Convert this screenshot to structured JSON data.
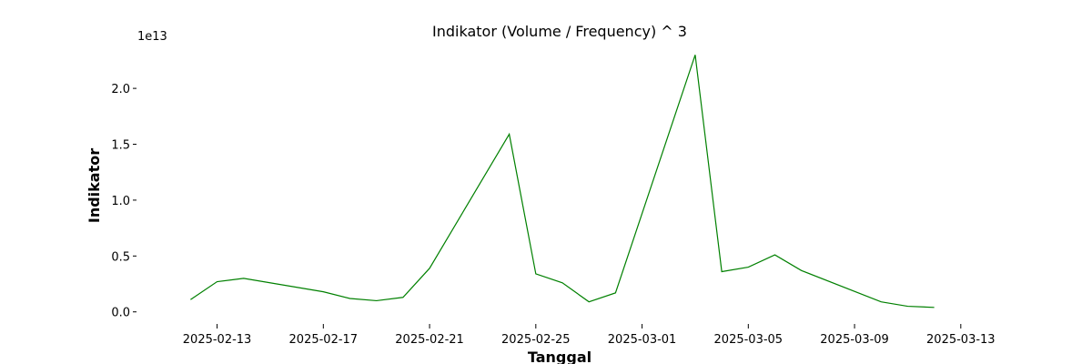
{
  "chart_data": {
    "type": "line",
    "title": "Indikator (Volume / Frequency) ^ 3",
    "xlabel": "Tanggal",
    "ylabel": "Indikator",
    "y_offset_label": "1e13",
    "y_multiplier": 10000000000000.0,
    "xlim": [
      "2025-02-10",
      "2025-03-14"
    ],
    "ylim": [
      -0.1,
      2.4
    ],
    "x_ticks": [
      "2025-02-13",
      "2025-02-17",
      "2025-02-21",
      "2025-02-25",
      "2025-03-01",
      "2025-03-05",
      "2025-03-09",
      "2025-03-13"
    ],
    "y_ticks": [
      0.0,
      0.5,
      1.0,
      1.5,
      2.0
    ],
    "y_tick_labels": [
      "0.0",
      "0.5",
      "1.0",
      "1.5",
      "2.0"
    ],
    "grid": false,
    "line_color": "#008000",
    "series": [
      {
        "x": [
          "2025-02-12",
          "2025-02-13",
          "2025-02-14",
          "2025-02-17",
          "2025-02-18",
          "2025-02-19",
          "2025-02-20",
          "2025-02-21",
          "2025-02-24",
          "2025-02-25",
          "2025-02-26",
          "2025-02-27",
          "2025-02-28",
          "2025-03-03",
          "2025-03-04",
          "2025-03-05",
          "2025-03-06",
          "2025-03-07",
          "2025-03-10",
          "2025-03-11",
          "2025-03-12"
        ],
        "values": [
          0.11,
          0.27,
          0.3,
          0.18,
          0.12,
          0.1,
          0.13,
          0.39,
          1.59,
          0.34,
          0.26,
          0.09,
          0.17,
          2.3,
          0.36,
          0.4,
          0.51,
          0.37,
          0.09,
          0.05,
          0.04
        ]
      }
    ]
  }
}
